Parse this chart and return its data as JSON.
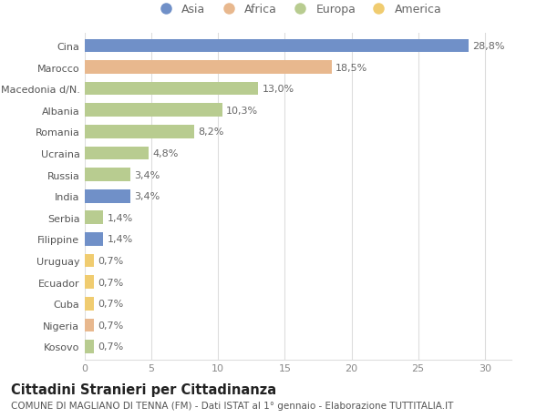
{
  "countries": [
    "Cina",
    "Marocco",
    "Macedonia d/N.",
    "Albania",
    "Romania",
    "Ucraina",
    "Russia",
    "India",
    "Serbia",
    "Filippine",
    "Uruguay",
    "Ecuador",
    "Cuba",
    "Nigeria",
    "Kosovo"
  ],
  "values": [
    28.8,
    18.5,
    13.0,
    10.3,
    8.2,
    4.8,
    3.4,
    3.4,
    1.4,
    1.4,
    0.7,
    0.7,
    0.7,
    0.7,
    0.7
  ],
  "labels": [
    "28,8%",
    "18,5%",
    "13,0%",
    "10,3%",
    "8,2%",
    "4,8%",
    "3,4%",
    "3,4%",
    "1,4%",
    "1,4%",
    "0,7%",
    "0,7%",
    "0,7%",
    "0,7%",
    "0,7%"
  ],
  "continents": [
    "Asia",
    "Africa",
    "Europa",
    "Europa",
    "Europa",
    "Europa",
    "Europa",
    "Asia",
    "Europa",
    "Asia",
    "America",
    "America",
    "America",
    "Africa",
    "Europa"
  ],
  "continent_colors": {
    "Asia": "#7090c8",
    "Africa": "#e8b88e",
    "Europa": "#b8cc90",
    "America": "#f0cc70"
  },
  "legend_order": [
    "Asia",
    "Africa",
    "Europa",
    "America"
  ],
  "title_bold": "Cittadini Stranieri per Cittadinanza",
  "subtitle": "COMUNE DI MAGLIANO DI TENNA (FM) - Dati ISTAT al 1° gennaio - Elaborazione TUTTITALIA.IT",
  "xlim": [
    0,
    32
  ],
  "xticks": [
    0,
    5,
    10,
    15,
    20,
    25,
    30
  ],
  "background_color": "#ffffff",
  "grid_color": "#dddddd",
  "bar_height": 0.62,
  "label_fontsize": 8,
  "tick_fontsize": 8,
  "title_fontsize": 10.5,
  "subtitle_fontsize": 7.5
}
